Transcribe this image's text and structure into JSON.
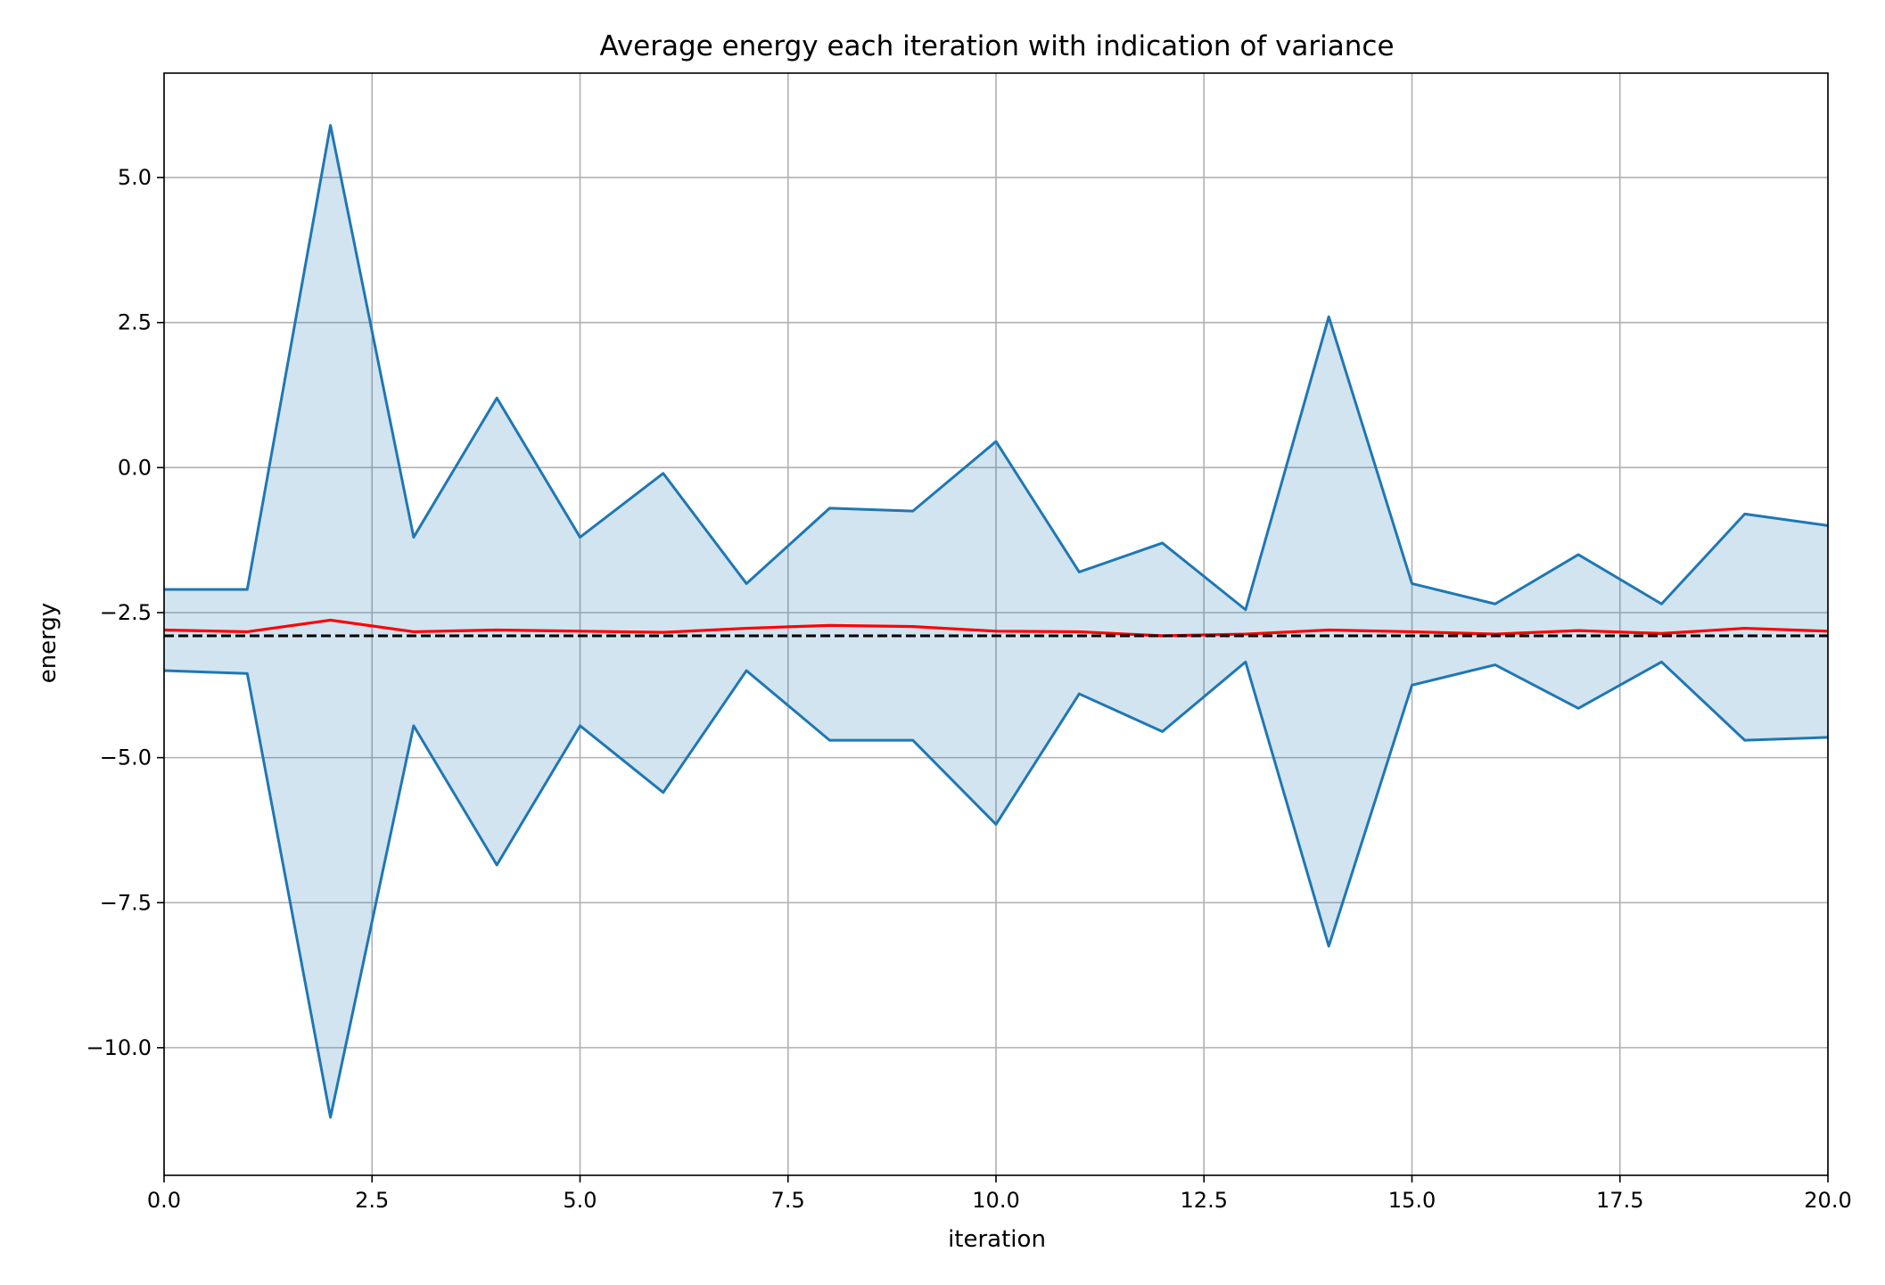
{
  "chart_data": {
    "type": "line",
    "title": "Average energy each iteration with indication of variance",
    "xlabel": "iteration",
    "ylabel": "energy",
    "xlim": [
      0,
      20
    ],
    "ylim": [
      -12.2,
      6.8
    ],
    "grid": true,
    "x": [
      0,
      1,
      2,
      3,
      4,
      5,
      6,
      7,
      8,
      9,
      10,
      11,
      12,
      13,
      14,
      15,
      16,
      17,
      18,
      19,
      20
    ],
    "x_ticks": [
      "0.0",
      "2.5",
      "5.0",
      "7.5",
      "10.0",
      "12.5",
      "15.0",
      "17.5",
      "20.0"
    ],
    "x_tick_values": [
      0,
      2.5,
      5,
      7.5,
      10,
      12.5,
      15,
      17.5,
      20
    ],
    "y_ticks": [
      "5.0",
      "2.5",
      "0.0",
      "−2.5",
      "−5.0",
      "−7.5",
      "−10.0"
    ],
    "y_tick_values": [
      5,
      2.5,
      0,
      -2.5,
      -5,
      -7.5,
      -10
    ],
    "series": [
      {
        "role": "upper",
        "color": "#1f77b4",
        "values": [
          -2.1,
          -2.1,
          5.9,
          -1.2,
          1.2,
          -1.2,
          -0.1,
          -2.0,
          -0.7,
          -0.75,
          0.45,
          -1.8,
          -1.3,
          -2.45,
          2.6,
          -2.0,
          -2.35,
          -1.5,
          -2.35,
          -0.8,
          -1.0
        ]
      },
      {
        "role": "lower",
        "color": "#1f77b4",
        "values": [
          -3.5,
          -3.55,
          -11.2,
          -4.45,
          -6.85,
          -4.45,
          -5.6,
          -3.5,
          -4.7,
          -4.7,
          -6.15,
          -3.9,
          -4.55,
          -3.35,
          -8.25,
          -3.75,
          -3.4,
          -4.15,
          -3.35,
          -4.7,
          -4.65
        ]
      },
      {
        "role": "mean",
        "color": "#ff0000",
        "values": [
          -2.8,
          -2.83,
          -2.63,
          -2.83,
          -2.8,
          -2.82,
          -2.84,
          -2.77,
          -2.72,
          -2.74,
          -2.82,
          -2.83,
          -2.9,
          -2.87,
          -2.8,
          -2.83,
          -2.87,
          -2.81,
          -2.86,
          -2.77,
          -2.82
        ]
      }
    ],
    "fill_between": {
      "color": "#1f77b4",
      "opacity": 0.2
    },
    "reference_line": {
      "y": -2.9,
      "color": "#000000",
      "style": "dashed"
    }
  }
}
